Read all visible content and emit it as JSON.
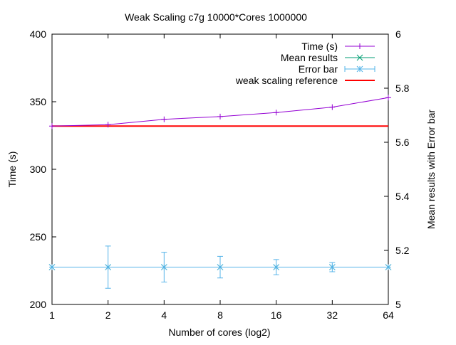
{
  "chart_data": {
    "type": "line",
    "title": "Weak Scaling c7g 10000*Cores 1000000",
    "xlabel": "Number of cores (log2)",
    "ylabel": "Time (s)",
    "y2label": "Mean results with Error bar",
    "x_scale": "log2",
    "x": [
      1,
      2,
      4,
      8,
      16,
      32,
      64
    ],
    "x_tick_labels": [
      "1",
      "2",
      "4",
      "8",
      "16",
      "32",
      "64"
    ],
    "xlim": [
      1,
      64
    ],
    "ylim": [
      200,
      400
    ],
    "y_ticks": [
      200,
      250,
      300,
      350,
      400
    ],
    "y2lim": [
      5,
      6
    ],
    "y2_ticks": [
      5,
      5.2,
      5.4,
      5.6,
      5.8,
      6
    ],
    "y2_tick_labels": [
      "5",
      "5.2",
      "5.4",
      "5.6",
      "5.8",
      "6"
    ],
    "grid": false,
    "legend_position": "top-right",
    "series": [
      {
        "name": "Time (s)",
        "axis": "left",
        "color": "#9400d3",
        "marker": "plus",
        "values": [
          332,
          333,
          337,
          339,
          342,
          346,
          353
        ]
      },
      {
        "name": "Mean results",
        "axis": "right",
        "color": "#009e73",
        "marker": "cross",
        "values": [
          5.138,
          5.138,
          5.138,
          5.138,
          5.138,
          5.138,
          5.138
        ]
      },
      {
        "name": "Error bar",
        "axis": "right",
        "color": "#56b4e9",
        "marker": "star",
        "values": [
          5.138,
          5.138,
          5.138,
          5.138,
          5.138,
          5.138,
          5.138
        ],
        "errors": [
          0.0,
          0.078,
          0.055,
          0.04,
          0.028,
          0.017,
          0.0
        ]
      },
      {
        "name": "weak scaling reference",
        "axis": "left",
        "color": "#ff0000",
        "marker": "none",
        "values": [
          332,
          332,
          332,
          332,
          332,
          332,
          332
        ]
      }
    ]
  }
}
